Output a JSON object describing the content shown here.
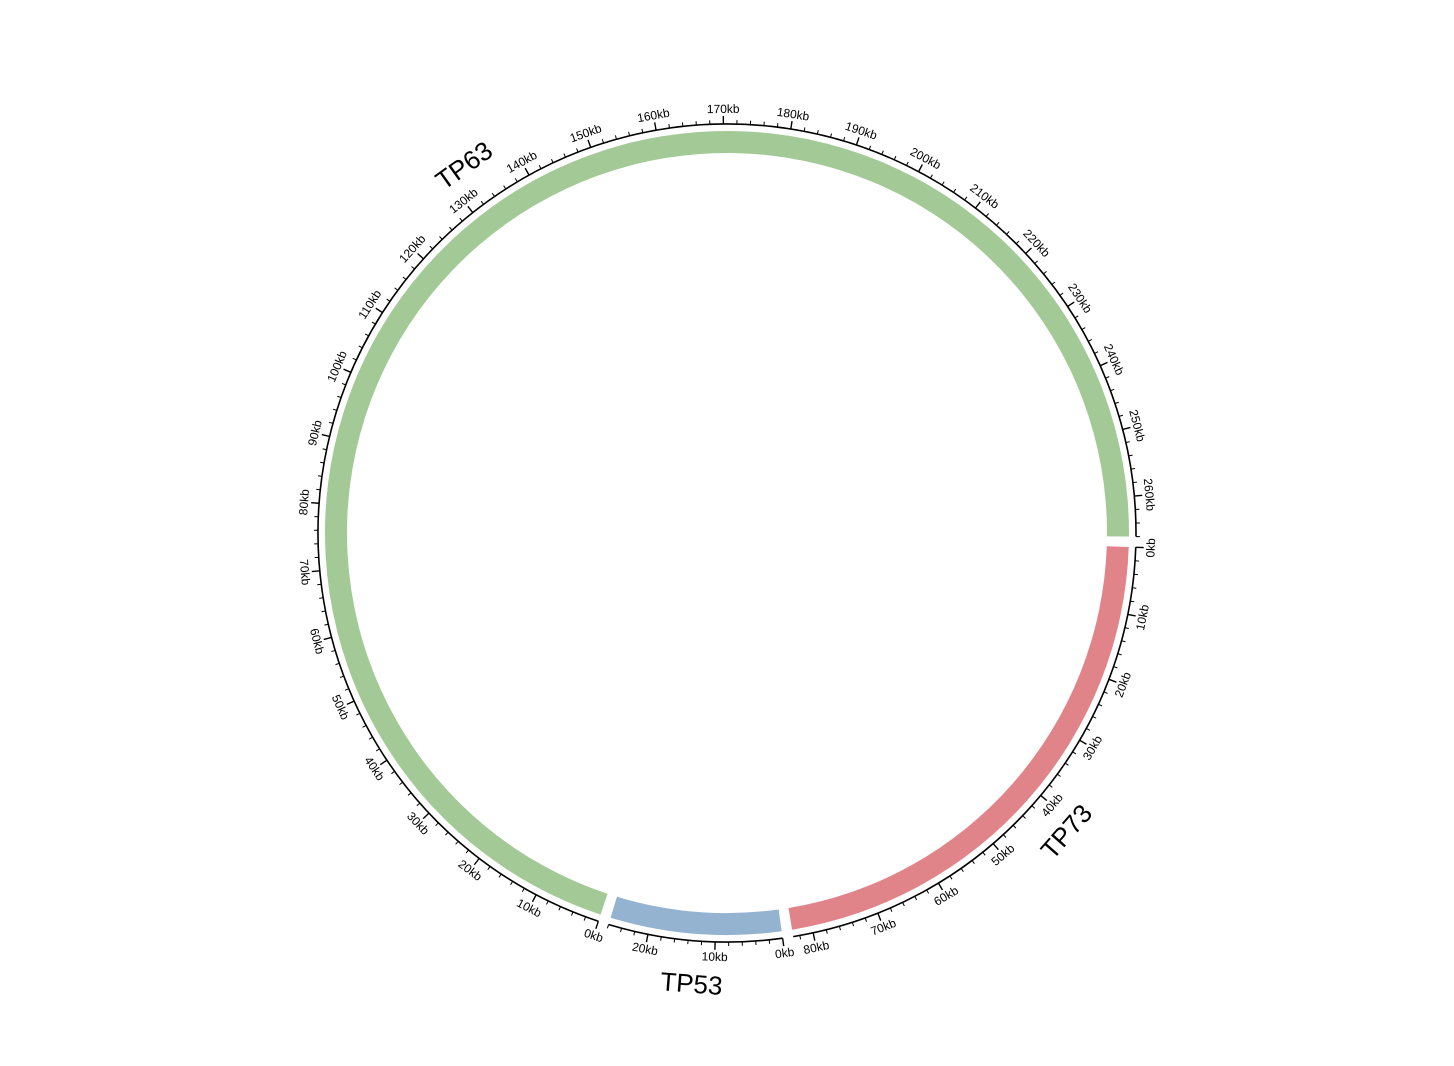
{
  "chart_data": {
    "type": "circos",
    "tick_unit": "kb",
    "sectors": [
      {
        "name": "TP73",
        "length_kb": 83,
        "color": "#e0848a",
        "tick_labels": [
          "0kb",
          "10kb",
          "20kb",
          "30kb",
          "40kb",
          "50kb",
          "60kb",
          "70kb",
          "80kb"
        ]
      },
      {
        "name": "TP53",
        "length_kb": 26,
        "color": "#94b3d1",
        "tick_labels": [
          "0kb",
          "10kb",
          "20kb"
        ]
      },
      {
        "name": "TP63",
        "length_kb": 266,
        "color": "#a3c996",
        "tick_labels": [
          "0kb",
          "10kb",
          "20kb",
          "30kb",
          "40kb",
          "50kb",
          "60kb",
          "70kb",
          "80kb",
          "90kb",
          "100kb",
          "110kb",
          "120kb",
          "130kb",
          "140kb",
          "150kb",
          "160kb",
          "170kb",
          "180kb",
          "190kb",
          "200kb",
          "210kb",
          "220kb",
          "230kb",
          "240kb",
          "250kb",
          "260kb"
        ]
      }
    ],
    "links": []
  }
}
